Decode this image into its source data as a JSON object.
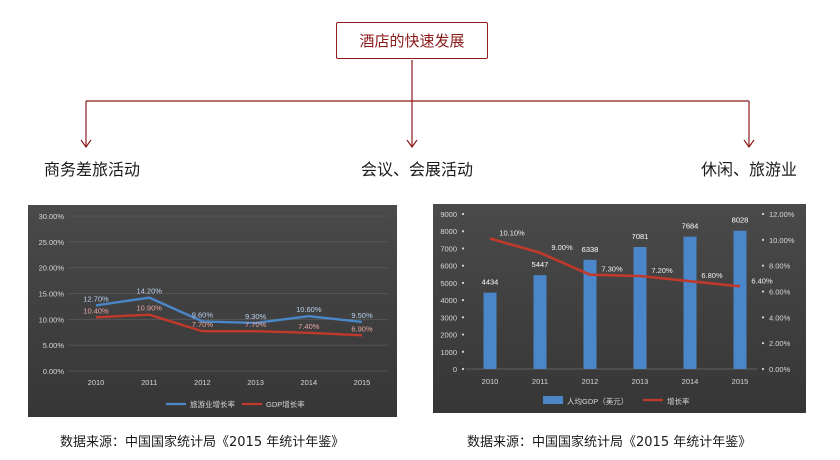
{
  "diagram": {
    "root": "酒店的快速发展",
    "branches": [
      "商务差旅活动",
      "会议、会展活动",
      "休闲、旅游业"
    ]
  },
  "colors": {
    "accent": "#8b1a1a",
    "chart_bg": "#3e3e3e",
    "series_blue": "#4a86c8",
    "series_red": "#c0392b"
  },
  "sources": [
    "数据来源：中国国家统计局《2015 年统计年鉴》",
    "数据来源：中国国家统计局《2015 年统计年鉴》"
  ],
  "chart_data": [
    {
      "type": "line",
      "x": [
        "2010",
        "2011",
        "2012",
        "2013",
        "2014",
        "2015"
      ],
      "ylim": [
        0,
        30
      ],
      "yticks": [
        "0.00%",
        "5.00%",
        "10.00%",
        "15.00%",
        "20.00%",
        "25.00%",
        "30.00%"
      ],
      "grid": true,
      "legend": "bottom",
      "series": [
        {
          "name": "旅游业增长率",
          "color": "#4a86c8",
          "values": [
            12.7,
            14.2,
            9.6,
            9.3,
            10.6,
            9.5
          ],
          "labels": [
            "12.70%",
            "14.20%",
            "9.60%",
            "9.30%",
            "10.60%",
            "9.50%"
          ]
        },
        {
          "name": "GDP增长率",
          "color": "#c0392b",
          "values": [
            10.4,
            10.9,
            7.7,
            7.7,
            7.4,
            6.9
          ],
          "labels": [
            "10.40%",
            "10.90%",
            "7.70%",
            "7.70%",
            "7.40%",
            "6.90%"
          ]
        }
      ]
    },
    {
      "type": "bar",
      "x": [
        "2010",
        "2011",
        "2012",
        "2013",
        "2014",
        "2015"
      ],
      "ylim": [
        0,
        9000
      ],
      "yticks": [
        "0",
        "1000",
        "2000",
        "3000",
        "4000",
        "5000",
        "6000",
        "7000",
        "8000",
        "9000"
      ],
      "y2lim": [
        0,
        12
      ],
      "y2ticks": [
        "0.00%",
        "2.00%",
        "4.00%",
        "6.00%",
        "8.00%",
        "10.00%",
        "12.00%"
      ],
      "legend": "bottom",
      "series": [
        {
          "name": "人均GDP（美元）",
          "type": "bar",
          "color": "#4a86c8",
          "values": [
            4434,
            5447,
            6338,
            7081,
            7684,
            8028
          ],
          "labels": [
            "4434",
            "5447",
            "6338",
            "7081",
            "7684",
            "8028"
          ]
        },
        {
          "name": "增长率",
          "type": "line",
          "axis": "right",
          "color": "#c0392b",
          "values": [
            10.1,
            9.0,
            7.3,
            7.2,
            6.8,
            6.4
          ],
          "labels": [
            "10.10%",
            "9.00%",
            "7.30%",
            "7.20%",
            "6.80%",
            "6.40%"
          ]
        }
      ]
    }
  ]
}
